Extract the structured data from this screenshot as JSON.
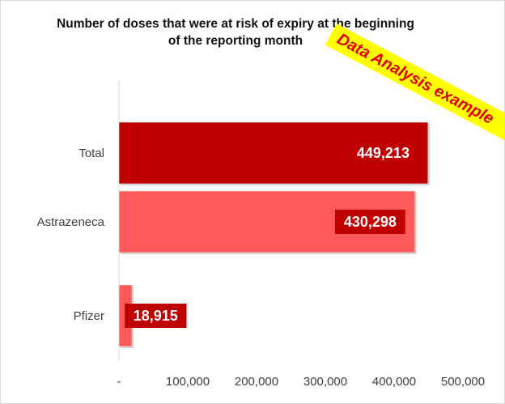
{
  "chart_data": {
    "type": "bar",
    "orientation": "horizontal",
    "title": "Number of doses that were at risk of expiry at the beginning of the reporting month",
    "title_lines": [
      "Number of doses that were at risk of expiry at the beginning",
      "of the reporting month"
    ],
    "categories": [
      "Total",
      "Astrazeneca",
      "Pfizer"
    ],
    "values": [
      449213,
      430298,
      18915
    ],
    "data_labels": [
      "449,213",
      "430,298",
      "18,915"
    ],
    "bar_colors": [
      "#c00000",
      "#ff5a5a",
      "#ff5a5a"
    ],
    "data_label_bg": "#c00000",
    "xlim": [
      0,
      500000
    ],
    "x_ticks": [
      0,
      100000,
      200000,
      300000,
      400000,
      500000
    ],
    "x_tick_labels": [
      "-",
      "100,000",
      "200,000",
      "300,000",
      "400,000",
      "500,000"
    ],
    "xlabel": "",
    "ylabel": "",
    "grid": false,
    "legend": "none"
  },
  "watermark": {
    "text": "Data Analysis example",
    "background": "#ffff00",
    "color": "#e00000"
  }
}
